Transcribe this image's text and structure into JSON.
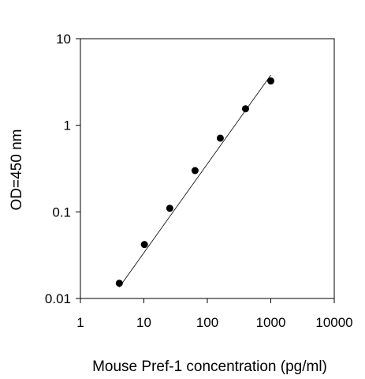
{
  "chart_data": {
    "type": "scatter",
    "title": "",
    "xlabel": "Mouse Pref-1 concentration (pg/ml)",
    "ylabel": "OD=450 nm",
    "x_scale": "log",
    "y_scale": "log",
    "xlim": [
      1,
      10000
    ],
    "ylim": [
      0.01,
      10
    ],
    "x_ticks": [
      "1",
      "10",
      "100",
      "1000",
      "10000"
    ],
    "y_ticks": [
      "0.01",
      "0.1",
      "1",
      "10"
    ],
    "grid": false,
    "legend": "none",
    "series": [
      {
        "x": [
          4.1,
          10.2,
          25.6,
          64,
          160,
          400,
          1000
        ],
        "y": [
          0.015,
          0.042,
          0.11,
          0.3,
          0.71,
          1.55,
          3.25
        ]
      }
    ],
    "fit_line": {
      "x": [
        4.1,
        1000
      ],
      "y": [
        0.0135,
        3.8
      ]
    },
    "colors": {
      "points": "#000000",
      "line": "#000000",
      "frame": "#000000"
    }
  }
}
